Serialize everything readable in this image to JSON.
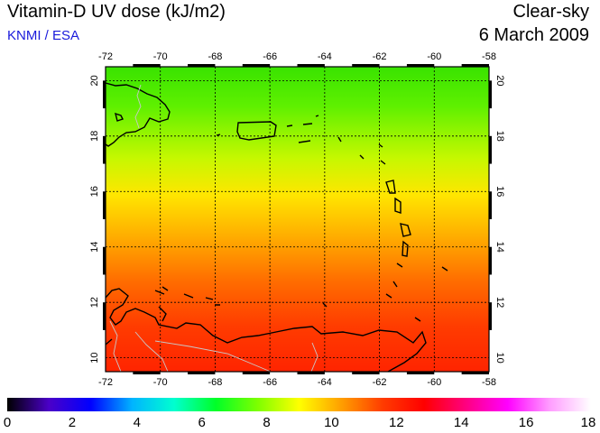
{
  "header": {
    "title": "Vitamin-D UV dose (kJ/m2)",
    "credit": "KNMI / ESA",
    "mode": "Clear-sky",
    "date": "6 March 2009"
  },
  "map": {
    "lon_range": [
      -72,
      -58
    ],
    "lat_range": [
      9.5,
      20.5
    ],
    "lon_ticks": [
      "-72",
      "-70",
      "-68",
      "-66",
      "-64",
      "-62",
      "-60",
      "-58"
    ],
    "lat_ticks": [
      "10",
      "12",
      "14",
      "16",
      "18",
      "20"
    ],
    "grid": true,
    "field_colors": {
      "north": "#38e800",
      "middle": "#ffff00",
      "south": "#ff2a00"
    },
    "coastline_color": "#000000",
    "border_color": "#c8c8c8"
  },
  "colorbar": {
    "min": 0,
    "max": 18,
    "labels": [
      "0",
      "2",
      "4",
      "6",
      "8",
      "10",
      "12",
      "14",
      "16",
      "18"
    ],
    "stops": [
      "#000000",
      "#4b00c8",
      "#0000ff",
      "#00b4ff",
      "#00ffd0",
      "#00ff28",
      "#7dff00",
      "#ffff00",
      "#ffa000",
      "#ff3c00",
      "#ff0000",
      "#ff0080",
      "#ff00ff",
      "#ff9cff",
      "#ffffff"
    ]
  }
}
